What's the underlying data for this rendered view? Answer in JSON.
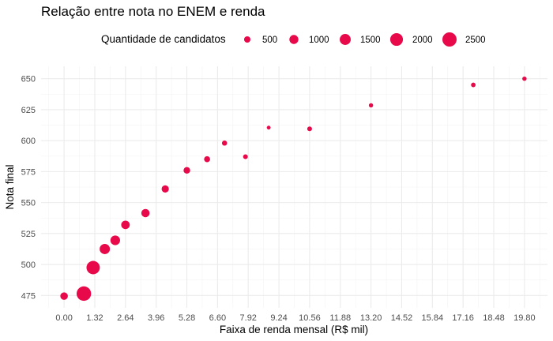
{
  "chart_data": {
    "type": "scatter",
    "title": "Relação entre nota no ENEM e renda",
    "xlabel": "Faixa de renda mensal (R$ mil)",
    "ylabel": "Nota final",
    "xlim": [
      -0.99,
      20.79
    ],
    "ylim": [
      465,
      660
    ],
    "x_ticks": [
      "0.00",
      "1.32",
      "2.64",
      "3.96",
      "5.28",
      "6.60",
      "7.92",
      "9.24",
      "10.56",
      "11.88",
      "13.20",
      "14.52",
      "15.84",
      "17.16",
      "18.48",
      "19.80"
    ],
    "y_ticks": [
      475,
      500,
      525,
      550,
      575,
      600,
      625,
      650
    ],
    "legend": {
      "title": "Quantidade de candidatos",
      "position": "top",
      "sizes": [
        500,
        1000,
        1500,
        2000,
        2500
      ],
      "labels": [
        "500",
        "1000",
        "1500",
        "2000",
        "2500"
      ]
    },
    "color": "#e8094a",
    "grid": true,
    "points": [
      {
        "x": 0.0,
        "y": 474.5,
        "size": 700
      },
      {
        "x": 0.85,
        "y": 476.5,
        "size": 2600
      },
      {
        "x": 1.25,
        "y": 497.5,
        "size": 2200
      },
      {
        "x": 1.75,
        "y": 512.5,
        "size": 1300
      },
      {
        "x": 2.2,
        "y": 519.5,
        "size": 1150
      },
      {
        "x": 2.64,
        "y": 532,
        "size": 900
      },
      {
        "x": 3.5,
        "y": 541.5,
        "size": 850
      },
      {
        "x": 4.35,
        "y": 561,
        "size": 650
      },
      {
        "x": 5.28,
        "y": 576,
        "size": 550
      },
      {
        "x": 6.15,
        "y": 585,
        "size": 450
      },
      {
        "x": 6.9,
        "y": 598,
        "size": 330
      },
      {
        "x": 7.8,
        "y": 587,
        "size": 280
      },
      {
        "x": 8.8,
        "y": 610.5,
        "size": 180
      },
      {
        "x": 10.56,
        "y": 609.5,
        "size": 280
      },
      {
        "x": 13.2,
        "y": 628.5,
        "size": 230
      },
      {
        "x": 17.6,
        "y": 645,
        "size": 260
      },
      {
        "x": 19.8,
        "y": 650,
        "size": 230
      }
    ]
  }
}
